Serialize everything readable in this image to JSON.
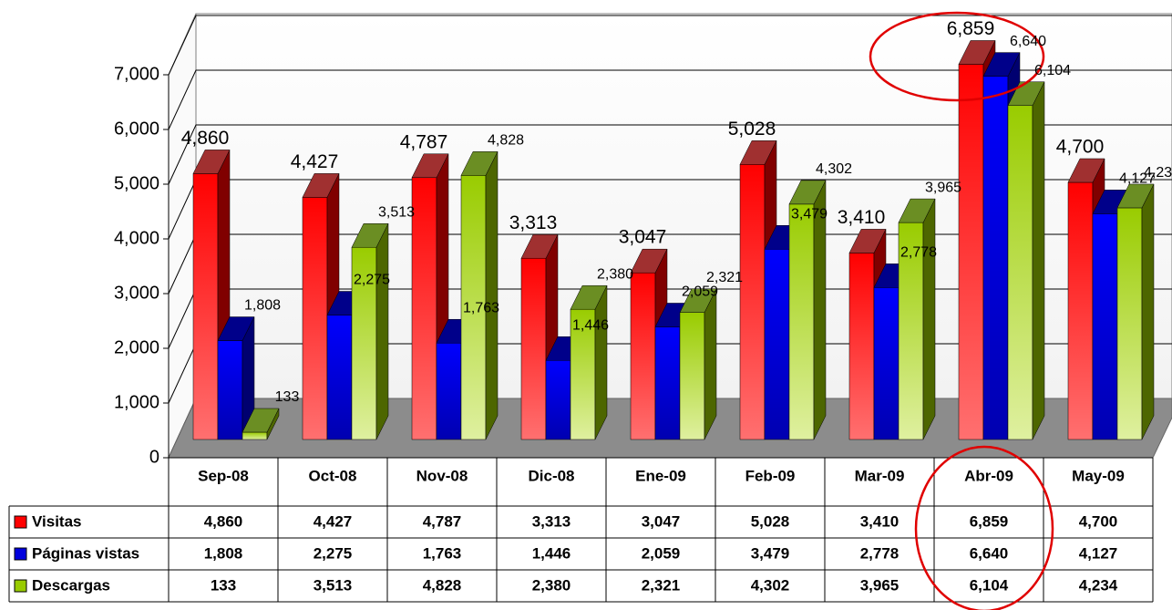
{
  "chart_data": {
    "type": "bar3d",
    "categories": [
      "Sep-08",
      "Oct-08",
      "Nov-08",
      "Dic-08",
      "Ene-09",
      "Feb-09",
      "Mar-09",
      "Abr-09",
      "May-09"
    ],
    "series": [
      {
        "name": "Visitas",
        "color": "#ff0000",
        "values": [
          4860,
          4427,
          4787,
          3313,
          3047,
          5028,
          3410,
          6859,
          4700
        ],
        "value_labels": [
          "4,860",
          "4,427",
          "4,787",
          "3,313",
          "3,047",
          "5,028",
          "3,410",
          "6,859",
          "4,700"
        ]
      },
      {
        "name": "Páginas vistas",
        "color": "#0000dd",
        "values": [
          1808,
          2275,
          1763,
          1446,
          2059,
          3479,
          2778,
          6640,
          4127
        ],
        "value_labels": [
          "1,808",
          "2,275",
          "1,763",
          "1,446",
          "2,059",
          "3,479",
          "2,778",
          "6,640",
          "4,127"
        ]
      },
      {
        "name": "Descargas",
        "color": "#99cc00",
        "values": [
          133,
          3513,
          4828,
          2380,
          2321,
          4302,
          3965,
          6104,
          4234
        ],
        "value_labels": [
          "133",
          "3,513",
          "4,828",
          "2,380",
          "2,321",
          "4,302",
          "3,965",
          "6,104",
          "4,234"
        ]
      }
    ],
    "ylim": [
      0,
      7000
    ],
    "yticks": [
      0,
      {
        "value": 1000,
        "label": "1,000"
      },
      {
        "value": 2000,
        "label": "2,000"
      },
      {
        "value": 3000,
        "label": "3,000"
      },
      {
        "value": 4000,
        "label": "4,000"
      },
      {
        "value": 5000,
        "label": "5,000"
      },
      {
        "value": 6000,
        "label": "6,000"
      },
      {
        "value": 7000,
        "label": "7,000"
      }
    ],
    "grid": true
  }
}
